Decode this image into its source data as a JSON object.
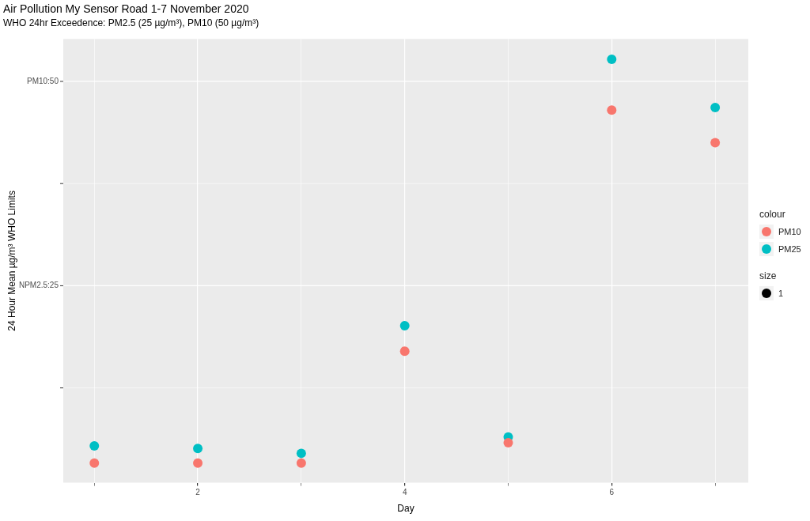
{
  "chart_data": {
    "type": "scatter",
    "title": "Air Pollution My Sensor Road 1-7 November 2020",
    "subtitle": "WHO 24hr Exceedence: PM2.5 (25 µg/m³), PM10 (50 µg/m³)",
    "xlabel": "Day",
    "ylabel": "24 Hour Mean µg/m³ WHO Limits",
    "legend_title": "colour",
    "legend": "right",
    "marker": "circle",
    "grid": "x",
    "x": [
      1,
      2,
      3,
      4,
      5,
      6,
      7
    ],
    "series": [
      {
        "name": "PM10",
        "color": "#f8766d",
        "values": [
          3.3,
          3.3,
          3.3,
          17.0,
          5.8,
          46.5,
          42.5
        ]
      },
      {
        "name": "PM25",
        "color": "#00bfc4",
        "values": [
          5.4,
          5.1,
          4.5,
          20.1,
          6.5,
          52.7,
          46.8
        ]
      }
    ],
    "xlim": [
      0.7,
      7.32
    ],
    "xticks": [
      {
        "value": 1,
        "label": null
      },
      2,
      {
        "value": 3,
        "label": null
      },
      4,
      {
        "value": 5,
        "label": null
      },
      6,
      {
        "value": 7,
        "label": null
      }
    ],
    "ylim": [
      0.9,
      55.2
    ],
    "ref_lines": [
      {
        "axis": "y",
        "value": 12.5,
        "color": "#ffffff"
      },
      {
        "axis": "y",
        "value": 25,
        "label": "NPM2.5:25",
        "color": "#ffffff"
      },
      {
        "axis": "y",
        "value": 37.5,
        "color": "#ffffff"
      },
      {
        "axis": "y",
        "value": 50,
        "label": "PM10:50",
        "color": "#ffffff"
      }
    ],
    "annotations": [
      "size",
      "1"
    ]
  }
}
